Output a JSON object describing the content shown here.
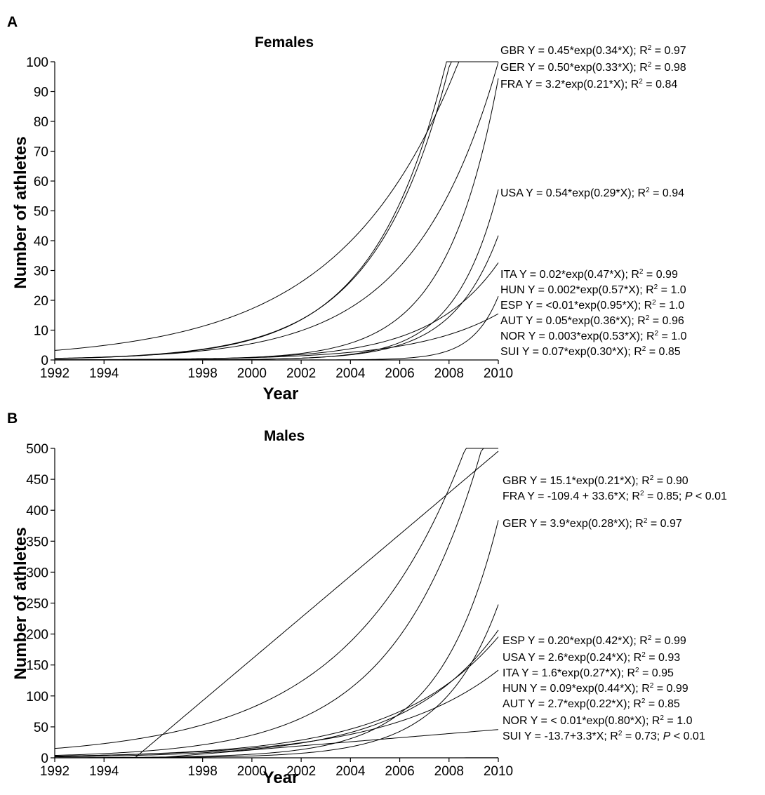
{
  "chart_data": [
    {
      "panel": "A",
      "type": "line",
      "title": "Females",
      "xlabel": "Year",
      "ylabel": "Number of athletes",
      "xlim": [
        1992,
        2010
      ],
      "ylim": [
        0,
        100
      ],
      "xticks": [
        1992,
        1994,
        1998,
        2000,
        2002,
        2004,
        2006,
        2008,
        2010
      ],
      "yticks": [
        0,
        10,
        20,
        30,
        40,
        50,
        60,
        70,
        80,
        90,
        100
      ],
      "series": [
        {
          "name": "GBR",
          "model": "exp",
          "a": 0.45,
          "b": 0.34,
          "equation": "GBR Y = 0.45*exp(0.34*X); R",
          "r2": "= 0.97"
        },
        {
          "name": "GER",
          "model": "exp",
          "a": 0.5,
          "b": 0.33,
          "equation": "GER Y = 0.50*exp(0.33*X); R",
          "r2": "= 0.98"
        },
        {
          "name": "FRA",
          "model": "exp",
          "a": 3.2,
          "b": 0.21,
          "equation": "FRA Y = 3.2*exp(0.21*X); R",
          "r2": "= 0.84"
        },
        {
          "name": "USA",
          "model": "exp",
          "a": 0.54,
          "b": 0.29,
          "equation": "USA Y = 0.54*exp(0.29*X); R",
          "r2": "= 0.94"
        },
        {
          "name": "ITA",
          "model": "exp",
          "a": 0.02,
          "b": 0.47,
          "equation": "ITA Y = 0.02*exp(0.47*X); R",
          "r2": "= 0.99"
        },
        {
          "name": "HUN",
          "model": "exp",
          "a": 0.002,
          "b": 0.57,
          "equation": "HUN Y = 0.002*exp(0.57*X); R",
          "r2": "= 1.0"
        },
        {
          "name": "ESP",
          "model": "exp",
          "a": 8e-07,
          "b": 0.95,
          "equation": "ESP Y = <0.01*exp(0.95*X); R",
          "r2": "= 1.0"
        },
        {
          "name": "AUT",
          "model": "exp",
          "a": 0.05,
          "b": 0.36,
          "equation": "AUT  Y = 0.05*exp(0.36*X); R",
          "r2": "= 0.96"
        },
        {
          "name": "NOR",
          "model": "exp",
          "a": 0.003,
          "b": 0.53,
          "equation": "NOR Y = 0.003*exp(0.53*X); R",
          "r2": "= 1.0"
        },
        {
          "name": "SUI",
          "model": "exp",
          "a": 0.07,
          "b": 0.3,
          "equation": "SUI Y = 0.07*exp(0.30*X); R",
          "r2": "= 0.85"
        }
      ]
    },
    {
      "panel": "B",
      "type": "line",
      "title": "Males",
      "xlabel": "Year",
      "ylabel": "Number of athletes",
      "xlim": [
        1992,
        2010
      ],
      "ylim": [
        0,
        500
      ],
      "xticks": [
        1992,
        1994,
        1998,
        2000,
        2002,
        2004,
        2006,
        2008,
        2010
      ],
      "yticks": [
        0,
        50,
        100,
        150,
        200,
        250,
        300,
        350,
        400,
        450,
        500
      ],
      "series": [
        {
          "name": "GBR",
          "model": "exp",
          "a": 15.1,
          "b": 0.21,
          "equation": "GBR Y = 15.1*exp(0.21*X); R",
          "r2": "= 0.90"
        },
        {
          "name": "FRA",
          "model": "linear",
          "a": -109.4,
          "b": 33.6,
          "equation": "FRA Y = -109.4 + 33.6*X; R",
          "r2": "= 0.85; ",
          "p": "P",
          "p_suffix": " < 0.01"
        },
        {
          "name": "GER",
          "model": "exp",
          "a": 3.9,
          "b": 0.28,
          "equation": "GER Y = 3.9*exp(0.28*X); R",
          "r2": "= 0.97"
        },
        {
          "name": "ESP",
          "model": "exp",
          "a": 0.2,
          "b": 0.42,
          "equation": "ESP Y = 0.20*exp(0.42*X); R",
          "r2": "= 0.99"
        },
        {
          "name": "USA",
          "model": "exp",
          "a": 2.6,
          "b": 0.24,
          "equation": "USA Y = 2.6*exp(0.24*X); R",
          "r2": "= 0.93"
        },
        {
          "name": "ITA",
          "model": "exp",
          "a": 1.6,
          "b": 0.27,
          "equation": "ITA Y = 1.6*exp(0.27*X); R",
          "r2": "= 0.95"
        },
        {
          "name": "HUN",
          "model": "exp",
          "a": 0.09,
          "b": 0.44,
          "equation": "HUN Y = 0.09*exp(0.44*X); R",
          "r2": "= 0.99"
        },
        {
          "name": "AUT",
          "model": "exp",
          "a": 2.7,
          "b": 0.22,
          "equation": "AUT Y = 2.7*exp(0.22*X); R",
          "r2": "= 0.85"
        },
        {
          "name": "NOR",
          "model": "exp",
          "a": 1.2e-07,
          "b": 0.8,
          "equation": "NOR Y = < 0.01*exp(0.80*X); R",
          "r2": "= 1.0"
        },
        {
          "name": "SUI",
          "model": "linear",
          "a": -13.7,
          "b": 3.3,
          "equation": "SUI Y = -13.7+3.3*X; R",
          "r2": "= 0.73; ",
          "p": "P",
          "p_suffix": " < 0.01"
        }
      ]
    }
  ]
}
